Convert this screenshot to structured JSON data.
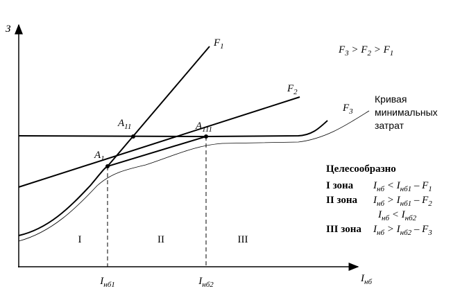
{
  "axes": {
    "y_label": "З",
    "x_label": [
      [
        "I",
        "нб"
      ]
    ]
  },
  "curves": {
    "f1": [
      [
        "F",
        "1"
      ]
    ],
    "f2": [
      [
        "F",
        "2"
      ]
    ],
    "f3": [
      [
        "F",
        "3"
      ]
    ]
  },
  "points": {
    "a1": [
      [
        "A",
        "1"
      ]
    ],
    "a11": [
      [
        "A",
        "11"
      ]
    ],
    "a111": [
      [
        "A",
        "111"
      ]
    ]
  },
  "x_marks": [
    [
      [
        "I",
        "нб1"
      ]
    ],
    [
      [
        "I",
        "нб2"
      ]
    ]
  ],
  "zones": [
    "I",
    "II",
    "III"
  ],
  "legend": [
    [
      "F",
      "3"
    ],
    [
      " > F",
      "2"
    ],
    [
      " > F",
      "1"
    ]
  ],
  "curve_label": [
    "Кривая",
    "минимальных",
    "затрат"
  ],
  "note": {
    "heading": "Целесообразно",
    "rows": [
      {
        "name": "I зона",
        "cond": [
          [
            "I",
            "нб"
          ],
          [
            " < I",
            "нб1"
          ],
          [
            " – F",
            "1"
          ]
        ]
      },
      {
        "name": "II зона",
        "cond": [
          [
            "I",
            "нб"
          ],
          [
            " > I",
            "нб1"
          ],
          [
            " – F",
            "2"
          ]
        ]
      },
      {
        "name": "",
        "cond": [
          [
            "I",
            "нб"
          ],
          [
            " < I",
            "нб2"
          ]
        ]
      },
      {
        "name": "III зона",
        "cond": [
          [
            "I",
            "нб"
          ],
          [
            " > I",
            "нб2"
          ],
          [
            " – F",
            "3"
          ]
        ]
      }
    ]
  }
}
